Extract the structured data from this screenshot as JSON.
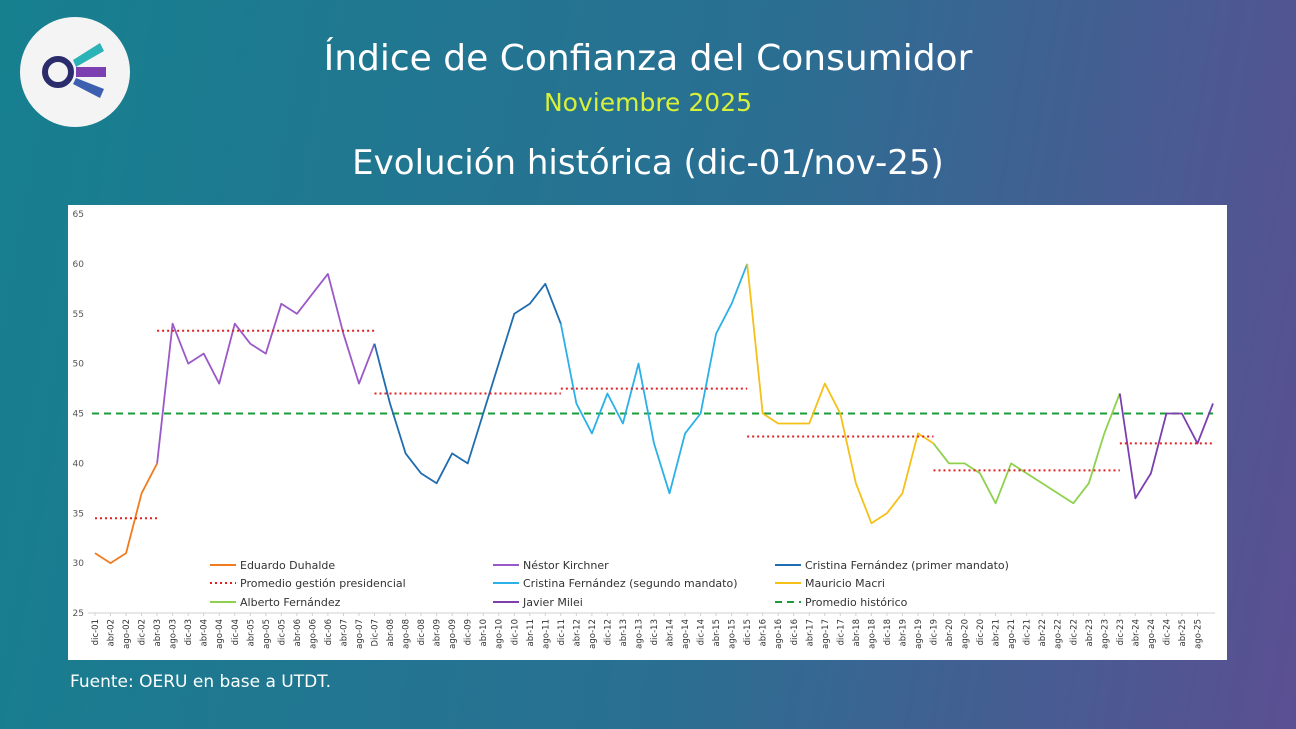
{
  "header": {
    "title": "Índice de Confianza del Consumidor",
    "subtitle": "Noviembre 2025",
    "heading": "Evolución histórica (dic-01/nov-25)"
  },
  "source": "Fuente: OERU en base a UTDT.",
  "chart_data": {
    "type": "line",
    "categories": [
      "dic-01",
      "abr-02",
      "ago-02",
      "dic-02",
      "abr-03",
      "ago-03",
      "dic-03",
      "abr-04",
      "ago-04",
      "dic-04",
      "abr-05",
      "ago-05",
      "dic-05",
      "abr-06",
      "ago-06",
      "dic-06",
      "abr-07",
      "ago-07",
      "Dic-07",
      "abr-08",
      "ago-08",
      "dic-08",
      "abr-09",
      "ago-09",
      "dic-09",
      "abr-10",
      "ago-10",
      "dic-10",
      "abr-11",
      "ago-11",
      "dic-11",
      "abr-12",
      "ago-12",
      "dic-12",
      "abr-13",
      "ago-13",
      "dic-13",
      "abr-14",
      "ago-14",
      "dic-14",
      "abr-15",
      "ago-15",
      "dic-15",
      "abr-16",
      "ago-16",
      "dic-16",
      "abr-17",
      "ago-17",
      "dic-17",
      "abr-18",
      "ago-18",
      "dic-18",
      "abr-19",
      "ago-19",
      "dic-19",
      "abr-20",
      "ago-20",
      "dic-20",
      "abr-21",
      "ago-21",
      "dic-21",
      "abr-22",
      "ago-22",
      "dic-22",
      "abr-23",
      "ago-23",
      "dic-23",
      "abr-24",
      "ago-24",
      "dic-24",
      "abr-25",
      "ago-25",
      null
    ],
    "ylim": [
      25,
      65
    ],
    "yticks": [
      25,
      30,
      35,
      40,
      45,
      50,
      55,
      60,
      65
    ],
    "series": [
      {
        "name": "Eduardo Duhalde",
        "color": "#f07c1f",
        "average": 34.5,
        "values": [
          31,
          30,
          31,
          37,
          40,
          null,
          null,
          null,
          null,
          null,
          null,
          null,
          null,
          null,
          null,
          null,
          null,
          null,
          null,
          null,
          null,
          null,
          null,
          null,
          null,
          null,
          null,
          null,
          null,
          null,
          null,
          null,
          null,
          null,
          null,
          null,
          null,
          null,
          null,
          null,
          null,
          null,
          null,
          null,
          null,
          null,
          null,
          null,
          null,
          null,
          null,
          null,
          null,
          null,
          null,
          null,
          null,
          null,
          null,
          null,
          null,
          null,
          null,
          null,
          null,
          null,
          null,
          null,
          null,
          null,
          null,
          null,
          null
        ]
      },
      {
        "name": "Néstor Kirchner",
        "color": "#9b59c8",
        "average": 53.3,
        "values": [
          null,
          null,
          null,
          null,
          40,
          54,
          50,
          51,
          48,
          54,
          52,
          51,
          56,
          55,
          57,
          59,
          53,
          48,
          52,
          null,
          null,
          null,
          null,
          null,
          null,
          null,
          null,
          null,
          null,
          null,
          null,
          null,
          null,
          null,
          null,
          null,
          null,
          null,
          null,
          null,
          null,
          null,
          null,
          null,
          null,
          null,
          null,
          null,
          null,
          null,
          null,
          null,
          null,
          null,
          null,
          null,
          null,
          null,
          null,
          null,
          null,
          null,
          null,
          null,
          null,
          null,
          null,
          null,
          null,
          null,
          null,
          null,
          null
        ]
      },
      {
        "name": "Cristina Fernández (primer mandato)",
        "color": "#1f6cb0",
        "average": 47,
        "values": [
          null,
          null,
          null,
          null,
          null,
          null,
          null,
          null,
          null,
          null,
          null,
          null,
          null,
          null,
          null,
          null,
          null,
          null,
          52,
          46,
          41,
          39,
          38,
          41,
          40,
          45,
          50,
          55,
          56,
          58,
          54,
          null,
          null,
          null,
          null,
          null,
          null,
          null,
          null,
          null,
          null,
          null,
          null,
          null,
          null,
          null,
          null,
          null,
          null,
          null,
          null,
          null,
          null,
          null,
          null,
          null,
          null,
          null,
          null,
          null,
          null,
          null,
          null,
          null,
          null,
          null,
          null,
          null,
          null,
          null,
          null,
          null,
          null
        ]
      },
      {
        "name": "Cristina Fernández (segundo mandato)",
        "color": "#2bb0e8",
        "average": 47.5,
        "values": [
          null,
          null,
          null,
          null,
          null,
          null,
          null,
          null,
          null,
          null,
          null,
          null,
          null,
          null,
          null,
          null,
          null,
          null,
          null,
          null,
          null,
          null,
          null,
          null,
          null,
          null,
          null,
          null,
          null,
          null,
          54,
          46,
          43,
          47,
          44,
          50,
          42,
          37,
          43,
          45,
          53,
          56,
          60,
          null,
          null,
          null,
          null,
          null,
          null,
          null,
          null,
          null,
          null,
          null,
          null,
          null,
          null,
          null,
          null,
          null,
          null,
          null,
          null,
          null,
          null,
          null,
          null,
          null,
          null,
          null,
          null,
          null,
          null
        ]
      },
      {
        "name": "Mauricio Macri",
        "color": "#f5c018",
        "average": 42.7,
        "values": [
          null,
          null,
          null,
          null,
          null,
          null,
          null,
          null,
          null,
          null,
          null,
          null,
          null,
          null,
          null,
          null,
          null,
          null,
          null,
          null,
          null,
          null,
          null,
          null,
          null,
          null,
          null,
          null,
          null,
          null,
          null,
          null,
          null,
          null,
          null,
          null,
          null,
          null,
          null,
          null,
          null,
          null,
          60,
          45,
          44,
          44,
          44,
          48,
          45,
          38,
          34,
          35,
          37,
          43,
          42,
          null,
          null,
          null,
          null,
          null,
          null,
          null,
          null,
          null,
          null,
          null,
          null,
          null,
          null,
          null,
          null,
          null,
          null
        ]
      },
      {
        "name": "Alberto Fernández",
        "color": "#8fd14f",
        "average": 39.3,
        "values": [
          null,
          null,
          null,
          null,
          null,
          null,
          null,
          null,
          null,
          null,
          null,
          null,
          null,
          null,
          null,
          null,
          null,
          null,
          null,
          null,
          null,
          null,
          null,
          null,
          null,
          null,
          null,
          null,
          null,
          null,
          null,
          null,
          null,
          null,
          null,
          null,
          null,
          null,
          null,
          null,
          null,
          null,
          null,
          null,
          null,
          null,
          null,
          null,
          null,
          null,
          null,
          null,
          null,
          null,
          42,
          40,
          40,
          39,
          36,
          40,
          39,
          38,
          37,
          36,
          38,
          43,
          47,
          null,
          null,
          null,
          null,
          null,
          null
        ]
      },
      {
        "name": "Javier Milei",
        "color": "#7b3fb0",
        "average": 42,
        "values": [
          null,
          null,
          null,
          null,
          null,
          null,
          null,
          null,
          null,
          null,
          null,
          null,
          null,
          null,
          null,
          null,
          null,
          null,
          null,
          null,
          null,
          null,
          null,
          null,
          null,
          null,
          null,
          null,
          null,
          null,
          null,
          null,
          null,
          null,
          null,
          null,
          null,
          null,
          null,
          null,
          null,
          null,
          null,
          null,
          null,
          null,
          null,
          null,
          null,
          null,
          null,
          null,
          null,
          null,
          null,
          null,
          null,
          null,
          null,
          null,
          null,
          null,
          null,
          null,
          null,
          null,
          47,
          36.5,
          39,
          45,
          45,
          42,
          46
        ]
      }
    ],
    "average_line": {
      "name": "Promedio gestión presidencial",
      "color": "#e02020"
    },
    "historic_average": {
      "name": "Promedio histórico",
      "value": 45,
      "color": "#1a9c3a"
    }
  }
}
